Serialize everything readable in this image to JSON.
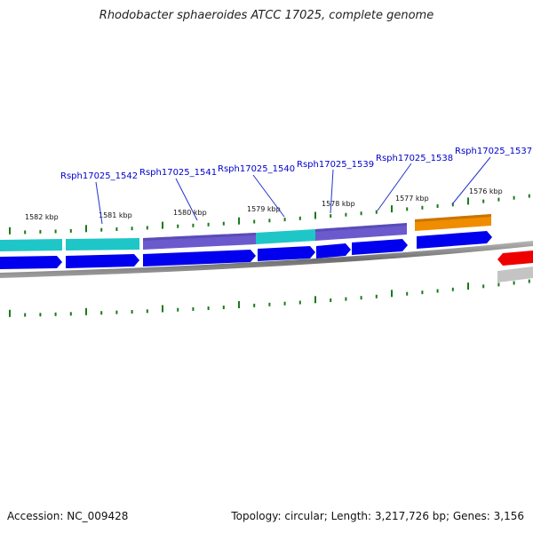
{
  "title": "Rhodobacter sphaeroides ATCC 17025, complete genome",
  "footer": {
    "accession": "Accession: NC_009428",
    "topology": "Topology: circular; Length: 3,217,726 bp; Genes: 3,156"
  },
  "kbp_labels": [
    "1582 kbp",
    "1581 kbp",
    "1580 kbp",
    "1579 kbp",
    "1578 kbp",
    "1577 kbp",
    "1576 kbp"
  ],
  "gene_labels": [
    "Rsph17025_1542",
    "Rsph17025_1541",
    "Rsph17025_1540",
    "Rsph17025_1539",
    "Rsph17025_1538",
    "Rsph17025_1537"
  ],
  "colors": {
    "cds": "#0000ee",
    "cyan_feature": "#1fc6c8",
    "purple_feature": "#6a5acd",
    "orange_feature": "#f08c00",
    "red_feature": "#ee0000",
    "backbone": "#808080",
    "tick": "#1a7a1a",
    "label_line": "#2233cc"
  }
}
